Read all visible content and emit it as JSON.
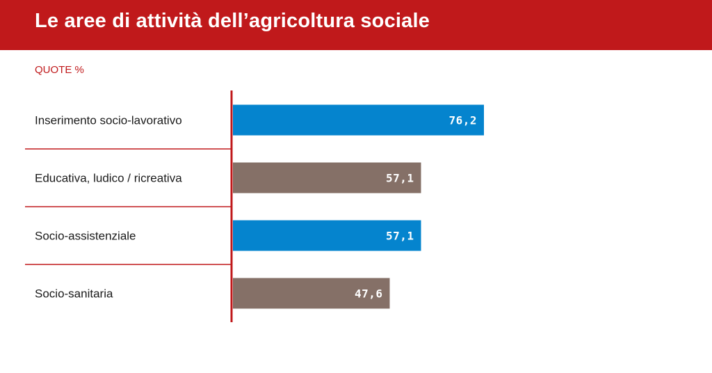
{
  "header": {
    "title": "Le aree di attività dell’agricoltura sociale"
  },
  "subtitle": "QUOTE %",
  "colors": {
    "header_bg": "#c0191b",
    "axis": "#c0191b",
    "separator": "#c0191b",
    "blue": "#0584ce",
    "brown": "#857067"
  },
  "chart_data": {
    "type": "bar",
    "orientation": "horizontal",
    "title": "Le aree di attività dell’agricoltura sociale",
    "subtitle": "QUOTE %",
    "xlabel": "",
    "ylabel": "",
    "xlim": [
      0,
      100
    ],
    "grid": false,
    "legend": "none",
    "categories": [
      "Inserimento socio-lavorativo",
      "Educativa, ludico / ricreativa",
      "Socio-assistenziale",
      "Socio-sanitaria"
    ],
    "values": [
      76.2,
      57.1,
      57.1,
      47.6
    ],
    "value_labels": [
      "76,2",
      "57,1",
      "57,1",
      "47,6"
    ],
    "bar_colors": [
      "#0584ce",
      "#857067",
      "#0584ce",
      "#857067"
    ]
  }
}
